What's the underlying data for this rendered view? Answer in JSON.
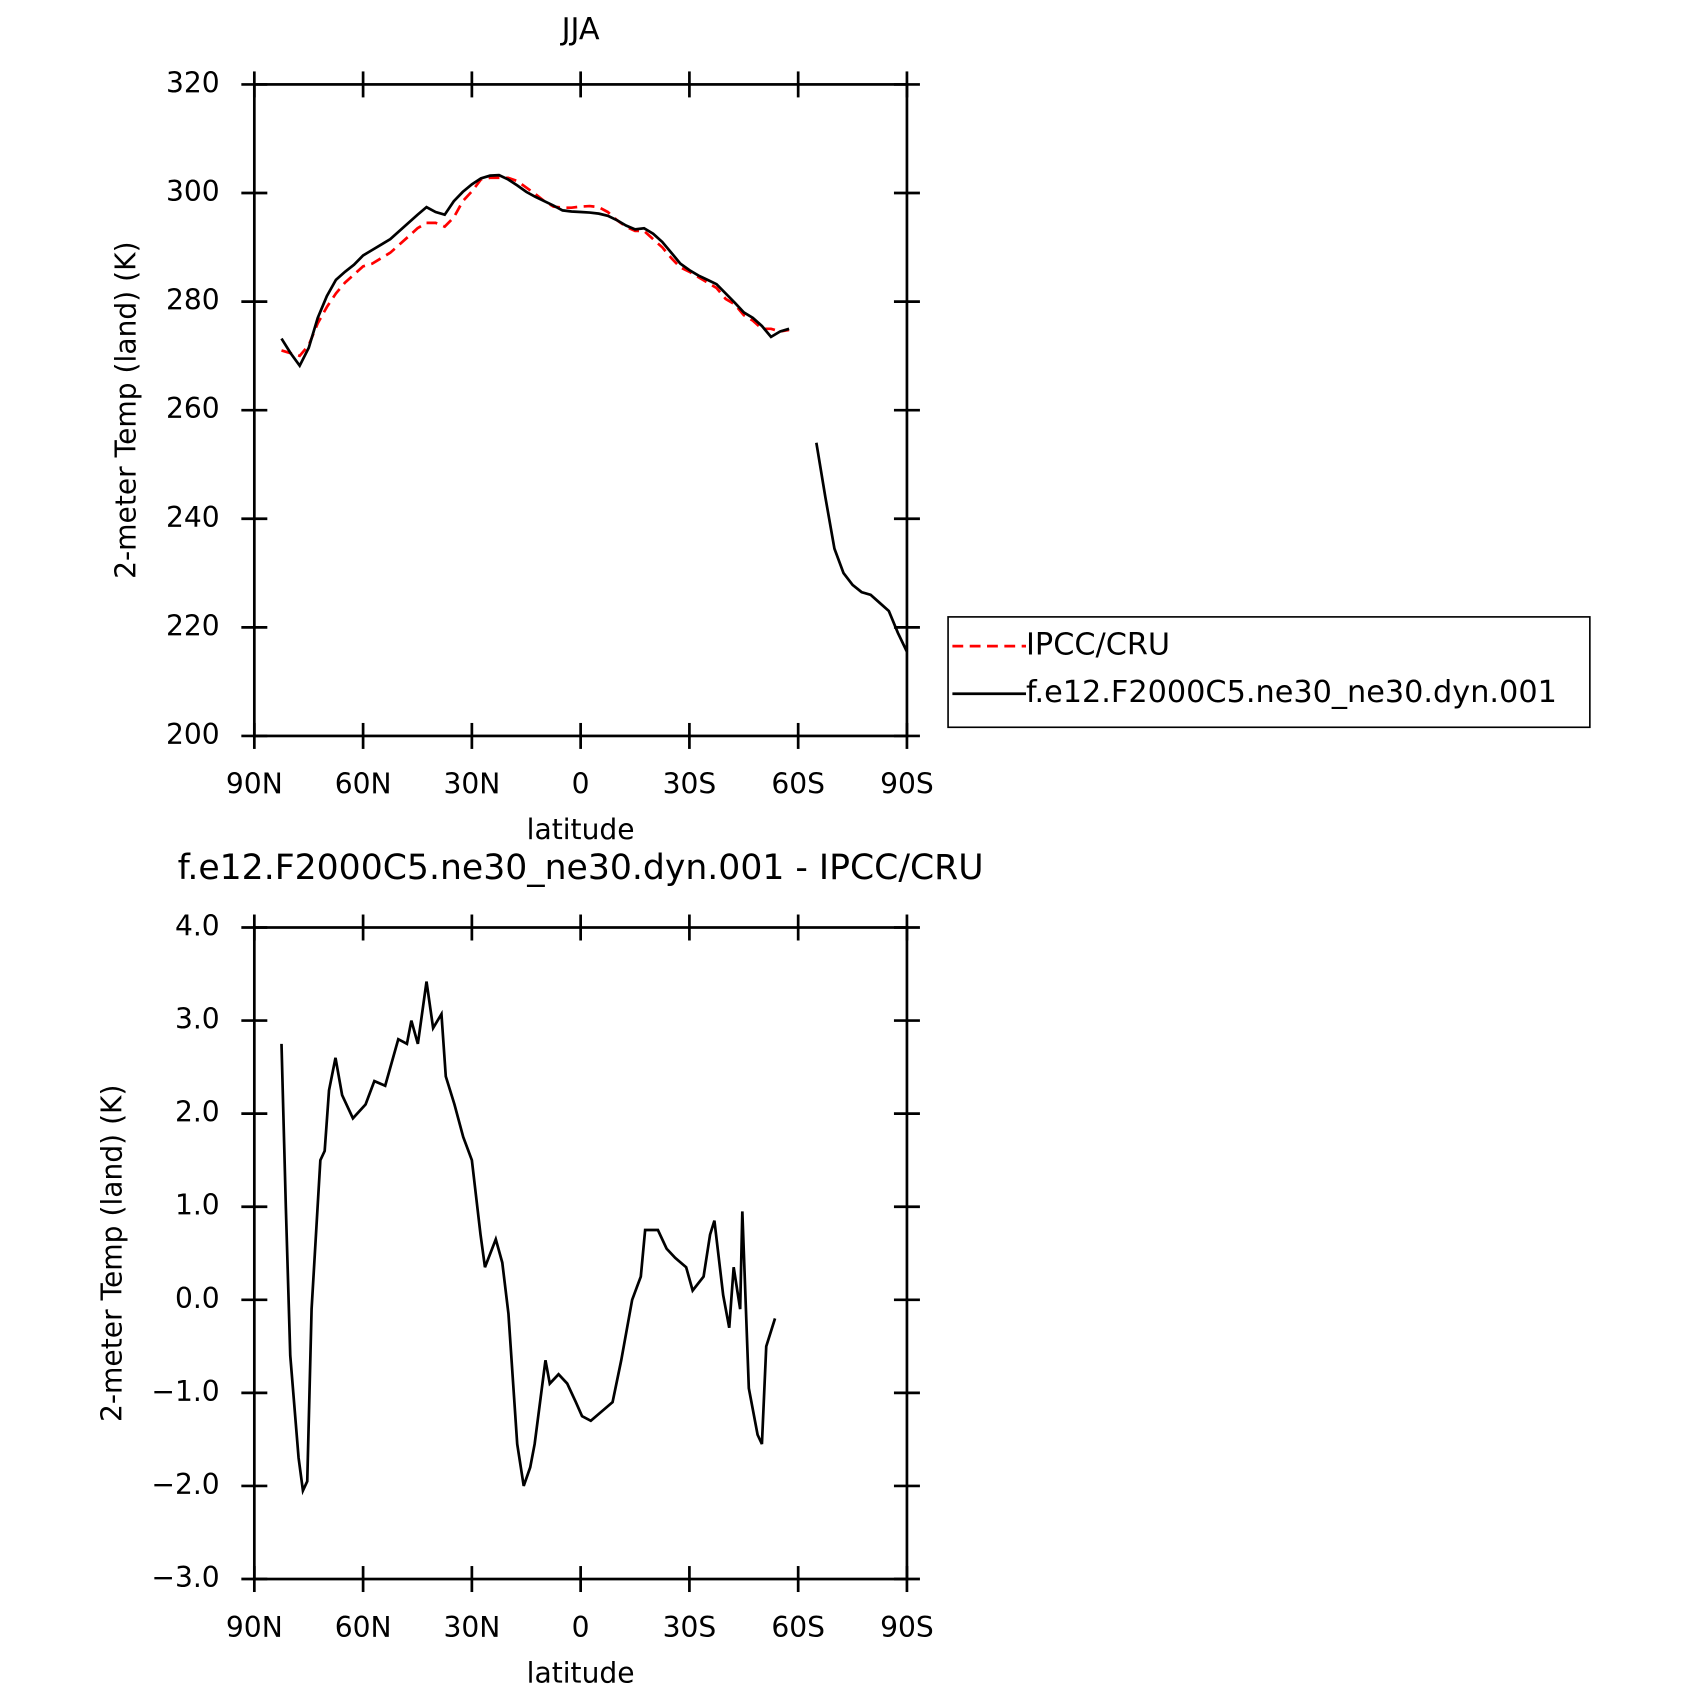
{
  "chart_data": [
    {
      "type": "line",
      "title": "JJA",
      "xlabel": "latitude",
      "ylabel": "2-meter Temp (land) (K)",
      "xlim": [
        90,
        -90
      ],
      "xticks": [
        {
          "value": 90,
          "label": "90N"
        },
        {
          "value": 60,
          "label": "60N"
        },
        {
          "value": 30,
          "label": "30N"
        },
        0,
        {
          "value": -30,
          "label": "30S"
        },
        {
          "value": -60,
          "label": "60S"
        },
        {
          "value": -90,
          "label": "90S"
        }
      ],
      "ylim": [
        200,
        320
      ],
      "yticks": [
        200,
        220,
        240,
        260,
        280,
        300,
        320
      ],
      "legend": "right",
      "x": [
        82.5,
        80,
        77.5,
        75,
        72.5,
        70,
        67.5,
        65,
        62.5,
        60,
        57.5,
        55,
        52.5,
        50,
        47.5,
        45,
        42.5,
        40,
        37.5,
        35,
        32.5,
        30,
        27.5,
        25,
        22.5,
        20,
        17.5,
        15,
        12.5,
        10,
        7.5,
        5,
        2.5,
        0,
        -2.5,
        -5,
        -7.5,
        -10,
        -12.5,
        -15,
        -17.5,
        -20,
        -22.5,
        -25,
        -27.5,
        -30,
        -32.5,
        -35,
        -37.5,
        -40,
        -42.5,
        -45,
        -47.5,
        -50,
        -52.5,
        -55,
        -57.5,
        -60,
        -62.5,
        -65,
        -67.5,
        -70,
        -72.5,
        -75,
        -77.5,
        -80,
        -82.5,
        -85,
        -87.5,
        -90
      ],
      "series": [
        {
          "name": "IPCC/CRU",
          "color": "#ff0000",
          "style": "dashed",
          "values": [
            271,
            270.5,
            270,
            272,
            276,
            279,
            281.5,
            283.5,
            285,
            286.5,
            287,
            288,
            289,
            290.5,
            292,
            293.5,
            294.5,
            294.5,
            293.8,
            295.5,
            298.5,
            300.3,
            302.5,
            302.8,
            302.8,
            302.8,
            302.2,
            301,
            299.8,
            298.5,
            297.5,
            297.3,
            297.3,
            297.5,
            297.6,
            297.4,
            296.5,
            295,
            293.8,
            293,
            293,
            291.5,
            290,
            288,
            286.3,
            285.5,
            284.5,
            283.5,
            282.5,
            280.5,
            279.5,
            277.5,
            276.5,
            275,
            275,
            274.5,
            274.8,
            null,
            null,
            null,
            null,
            null,
            null,
            null,
            null,
            null,
            null,
            null,
            null,
            null
          ]
        },
        {
          "name": "f.e12.F2000C5.ne30_ne30.dyn.001",
          "color": "#000000",
          "style": "solid",
          "values": [
            273.2,
            270.5,
            268.2,
            271.5,
            277,
            281,
            284,
            285.5,
            286.8,
            288.5,
            289.5,
            290.5,
            291.5,
            293,
            294.5,
            296,
            297.4,
            296.5,
            296,
            298.5,
            300.2,
            301.6,
            302.7,
            303.2,
            303.3,
            302.5,
            301.4,
            300.2,
            299.3,
            298.5,
            297.7,
            296.8,
            296.6,
            296.5,
            296.4,
            296.2,
            295.8,
            295,
            294,
            293.3,
            293.5,
            292.5,
            291,
            289,
            287,
            285.8,
            284.8,
            284,
            283.2,
            281.5,
            279.8,
            278,
            277,
            275.5,
            273.5,
            274.5,
            275,
            null,
            null,
            254,
            244,
            234.5,
            230,
            227.8,
            226.5,
            226,
            224.5,
            223,
            219,
            215.5
          ]
        }
      ]
    },
    {
      "type": "line",
      "title": "f.e12.F2000C5.ne30_ne30.dyn.001 - IPCC/CRU",
      "xlabel": "latitude",
      "ylabel": "2-meter Temp (land) (K)",
      "xlim": [
        90,
        -90
      ],
      "xticks": [
        {
          "value": 90,
          "label": "90N"
        },
        {
          "value": 60,
          "label": "60N"
        },
        {
          "value": 30,
          "label": "30N"
        },
        0,
        {
          "value": -30,
          "label": "30S"
        },
        {
          "value": -60,
          "label": "60S"
        },
        {
          "value": -90,
          "label": "90S"
        }
      ],
      "ylim": [
        -3,
        4
      ],
      "yticks": [
        {
          "value": -3,
          "label": "−3.0"
        },
        {
          "value": -2,
          "label": "−2.0"
        },
        {
          "value": -1,
          "label": "−1.0"
        },
        {
          "value": 0,
          "label": "0.0"
        },
        {
          "value": 1,
          "label": "1.0"
        },
        {
          "value": 2,
          "label": "2.0"
        },
        {
          "value": 3,
          "label": "3.0"
        },
        {
          "value": 4,
          "label": "4.0"
        }
      ],
      "x": [
        82.5,
        81.3,
        80.1,
        77.8,
        76.6,
        75.4,
        74.2,
        71.8,
        70.6,
        69.4,
        67.6,
        65.8,
        62.8,
        59.3,
        56.9,
        53.9,
        50.3,
        47.9,
        46.7,
        44.9,
        42.5,
        40.7,
        38.4,
        37.2,
        34.8,
        32.4,
        30,
        27.6,
        26.4,
        23.4,
        21.6,
        19.9,
        17.5,
        15.7,
        13.9,
        12.7,
        9.7,
        8.5,
        6.1,
        3.7,
        1.3,
        -0.4,
        -2.8,
        -5.8,
        -8.8,
        -11.2,
        -14.2,
        -16.6,
        -17.8,
        -21.3,
        -23.7,
        -26.1,
        -29.1,
        -30.9,
        -33.9,
        -35.7,
        -36.9,
        -39.3,
        -41,
        -42.2,
        -44,
        -44.6,
        -46.4,
        -48.8,
        -50,
        -51.2,
        -53.6
      ],
      "series": [
        {
          "name": "f.e12.F2000C5.ne30_ne30.dyn.001 - IPCC/CRU",
          "color": "#000000",
          "style": "solid",
          "values": [
            2.75,
            1,
            -0.6,
            -1.7,
            -2.05,
            -1.95,
            -0.1,
            1.5,
            1.6,
            2.25,
            2.6,
            2.2,
            1.95,
            2.1,
            2.35,
            2.3,
            2.8,
            2.75,
            3,
            2.75,
            3.42,
            2.92,
            3.07,
            2.4,
            2.1,
            1.75,
            1.5,
            0.7,
            0.35,
            0.65,
            0.4,
            -0.15,
            -1.55,
            -2,
            -1.8,
            -1.55,
            -0.65,
            -0.9,
            -0.8,
            -0.9,
            -1.1,
            -1.25,
            -1.3,
            -1.2,
            -1.1,
            -0.65,
            0,
            0.25,
            0.75,
            0.75,
            0.55,
            0.45,
            0.35,
            0.1,
            0.25,
            0.7,
            0.85,
            0.05,
            -0.3,
            0.35,
            -0.1,
            0.95,
            -0.95,
            -1.45,
            -1.55,
            -0.5,
            -0.2
          ]
        }
      ]
    }
  ]
}
